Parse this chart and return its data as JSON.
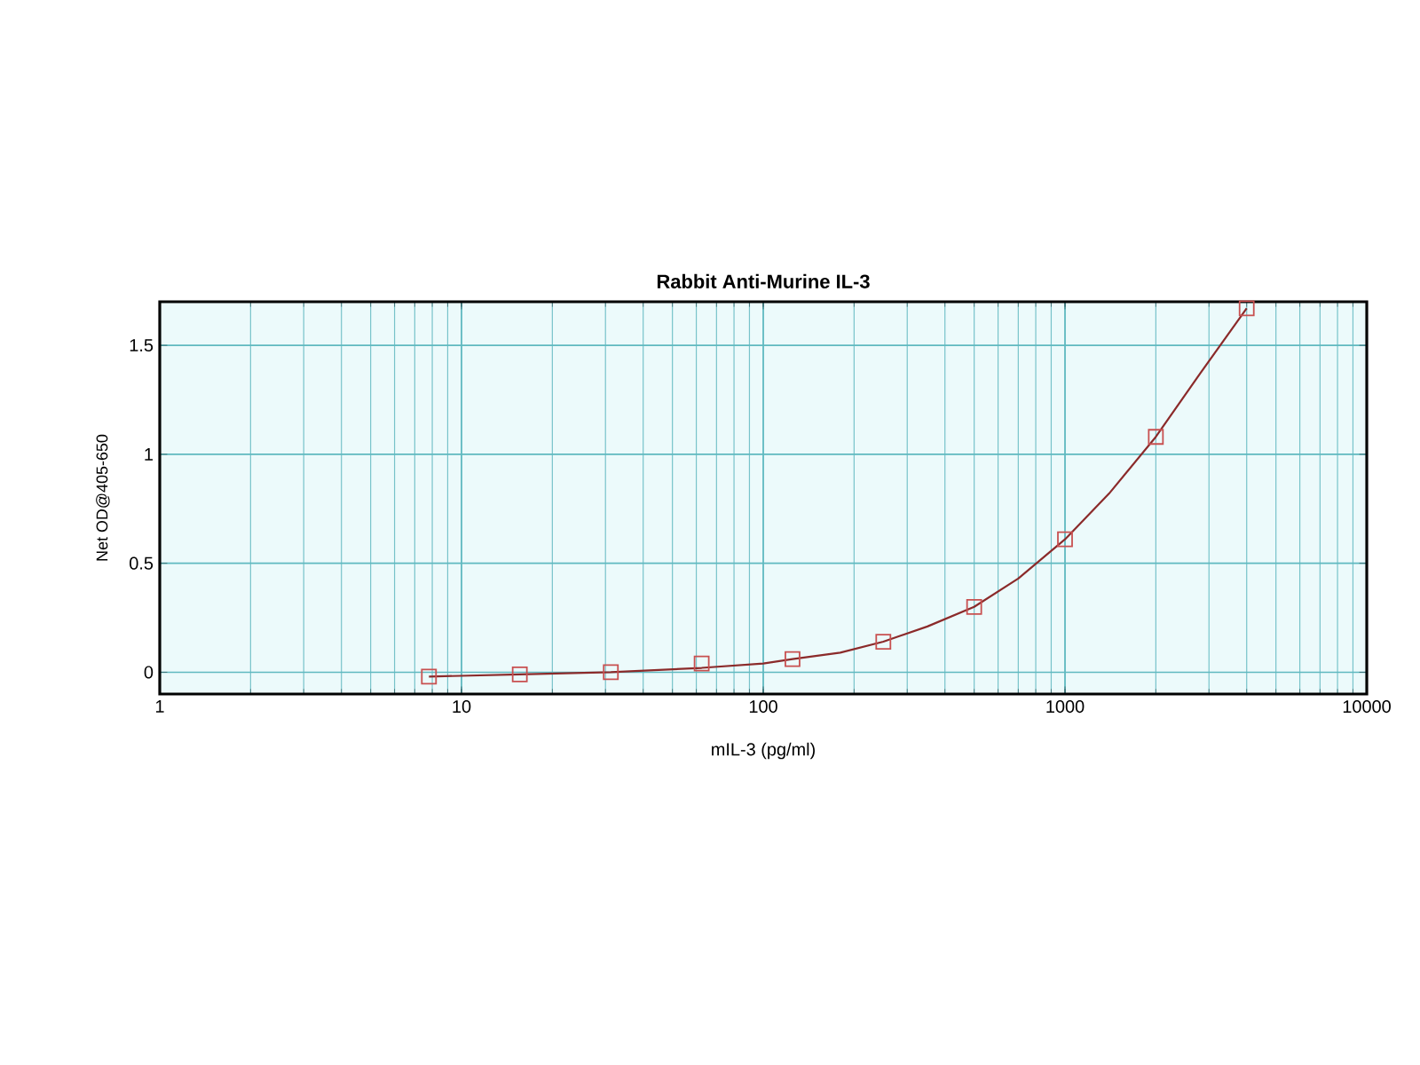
{
  "chart_data": {
    "type": "scatter",
    "title": "Rabbit Anti-Murine IL-3",
    "xlabel": "mIL-3 (pg/ml)",
    "ylabel": "Net OD@405-650",
    "log": "x",
    "xlim": [
      1,
      10000
    ],
    "xticks": [
      1,
      10,
      100,
      1000,
      10000
    ],
    "ylim": [
      -0.1,
      1.7
    ],
    "yticks": [
      0,
      0.5,
      1,
      1.5
    ],
    "grid": true,
    "series": [
      {
        "type": "line",
        "color": "#8b2a2a",
        "marker": "none",
        "line_style": "solid",
        "x": [
          7.8,
          15.6,
          31.25,
          62.5,
          100,
          125,
          180,
          250,
          350,
          500,
          700,
          1000,
          1400,
          2000,
          2800,
          4000
        ],
        "values": [
          -0.02,
          -0.01,
          0,
          0.02,
          0.04,
          0.06,
          0.09,
          0.14,
          0.21,
          0.3,
          0.43,
          0.61,
          0.82,
          1.08,
          1.37,
          1.67
        ]
      },
      {
        "color": "#c85050",
        "marker": "square",
        "x": [
          7.8,
          15.6,
          31.25,
          62.5,
          125,
          250,
          500,
          1000,
          2000,
          4000
        ],
        "values": [
          -0.02,
          -0.01,
          0,
          0.04,
          0.06,
          0.14,
          0.3,
          0.61,
          1.08,
          1.67
        ]
      }
    ]
  }
}
